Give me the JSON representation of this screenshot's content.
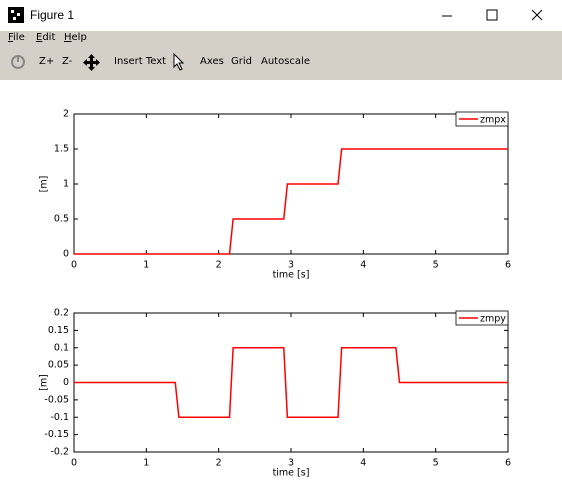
{
  "window": {
    "title": "Figure 1"
  },
  "menu": [
    "File",
    "Edit",
    "Help"
  ],
  "toolbar": [
    "Z+",
    "Z-",
    "Insert Text",
    "Axes",
    "Grid",
    "Autoscale"
  ],
  "chart_data": [
    {
      "type": "line",
      "xlabel": "time [s]",
      "ylabel": "[m]",
      "x": [
        0,
        2.15,
        2.2,
        2.9,
        2.95,
        3.65,
        3.7,
        6
      ],
      "series": [
        {
          "name": "zmpx",
          "color": "#ff0000",
          "values": [
            0,
            0,
            0.5,
            0.5,
            1,
            1,
            1.5,
            1.5
          ]
        }
      ],
      "xlim": [
        0,
        6
      ],
      "ylim": [
        0,
        2
      ],
      "xticks": [
        0,
        1,
        2,
        3,
        4,
        5,
        6
      ],
      "yticks": [
        0,
        0.5,
        1,
        1.5,
        2
      ],
      "legend": "northeast",
      "grid": false
    },
    {
      "type": "line",
      "xlabel": "time [s]",
      "ylabel": "[m]",
      "x": [
        0,
        1.4,
        1.45,
        2.15,
        2.2,
        2.9,
        2.95,
        3.65,
        3.7,
        4.45,
        4.5,
        6
      ],
      "series": [
        {
          "name": "zmpy",
          "color": "#ff0000",
          "values": [
            0,
            0,
            -0.1,
            -0.1,
            0.1,
            0.1,
            -0.1,
            -0.1,
            0.1,
            0.1,
            0,
            0
          ]
        }
      ],
      "xlim": [
        0,
        6
      ],
      "ylim": [
        -0.2,
        0.2
      ],
      "xticks": [
        0,
        1,
        2,
        3,
        4,
        5,
        6
      ],
      "yticks": [
        -0.2,
        -0.15,
        -0.1,
        -0.05,
        0,
        0.05,
        0.1,
        0.15,
        0.2
      ],
      "legend": "northeast",
      "grid": false
    }
  ]
}
